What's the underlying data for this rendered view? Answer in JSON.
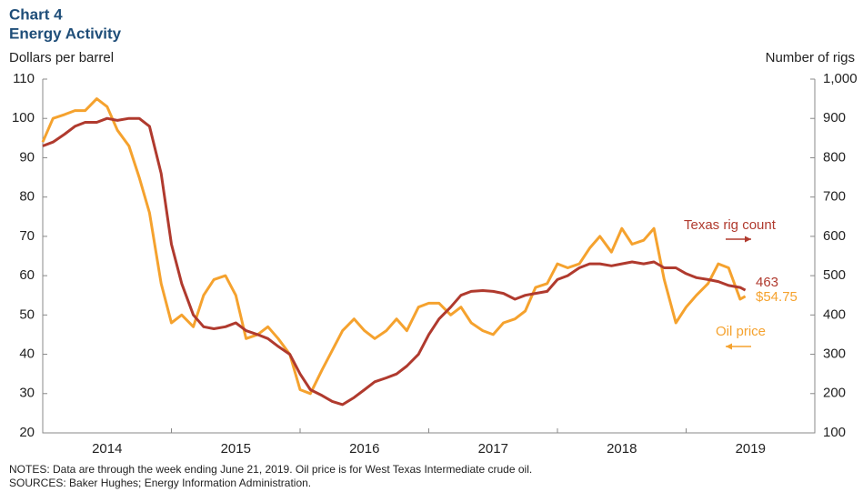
{
  "chart_data": {
    "type": "line",
    "title": "Chart 4",
    "subtitle": "Energy Activity",
    "y_label": "Dollars per barrel",
    "y2_label": "Number of rigs",
    "notes": "NOTES: Data are through the week ending June 21, 2019. Oil price is for West Texas Intermediate crude oil.",
    "sources": "SOURCES: Baker Hughes; Energy Information Administration.",
    "xlim": [
      2014,
      2020
    ],
    "xticks": [
      {
        "value": 2014.5,
        "label": "2014"
      },
      {
        "value": 2015.5,
        "label": "2015"
      },
      {
        "value": 2016.5,
        "label": "2016"
      },
      {
        "value": 2017.5,
        "label": "2017"
      },
      {
        "value": 2018.5,
        "label": "2018"
      },
      {
        "value": 2019.5,
        "label": "2019"
      }
    ],
    "ylim": [
      20,
      110
    ],
    "yticks": [
      20,
      30,
      40,
      50,
      60,
      70,
      80,
      90,
      100,
      110
    ],
    "y2lim": [
      100,
      1000
    ],
    "y2ticks": [
      100,
      200,
      300,
      400,
      500,
      600,
      700,
      800,
      900,
      {
        "value": 1000,
        "label": "1,000"
      }
    ],
    "x": [
      2014,
      2014.08,
      2014.17,
      2014.25,
      2014.33,
      2014.42,
      2014.5,
      2014.58,
      2014.67,
      2014.75,
      2014.83,
      2014.92,
      2015,
      2015.08,
      2015.17,
      2015.25,
      2015.33,
      2015.42,
      2015.5,
      2015.58,
      2015.67,
      2015.75,
      2015.83,
      2015.92,
      2016,
      2016.08,
      2016.17,
      2016.25,
      2016.33,
      2016.42,
      2016.5,
      2016.58,
      2016.67,
      2016.75,
      2016.83,
      2016.92,
      2017,
      2017.08,
      2017.17,
      2017.25,
      2017.33,
      2017.42,
      2017.5,
      2017.58,
      2017.67,
      2017.75,
      2017.83,
      2017.92,
      2018,
      2018.08,
      2018.17,
      2018.25,
      2018.33,
      2018.42,
      2018.5,
      2018.58,
      2018.67,
      2018.75,
      2018.83,
      2018.92,
      2019,
      2019.08,
      2019.17,
      2019.25,
      2019.33,
      2019.42,
      2019.46
    ],
    "series": [
      {
        "name": "Texas rig count",
        "color": "#b03a2e",
        "axis": "y2",
        "values": [
          830,
          840,
          860,
          880,
          890,
          890,
          900,
          895,
          900,
          900,
          880,
          760,
          580,
          480,
          400,
          370,
          365,
          370,
          380,
          360,
          350,
          340,
          320,
          300,
          250,
          210,
          195,
          180,
          172,
          190,
          210,
          230,
          240,
          250,
          270,
          300,
          350,
          390,
          420,
          450,
          460,
          462,
          460,
          455,
          440,
          450,
          455,
          460,
          490,
          500,
          520,
          530,
          530,
          525,
          530,
          535,
          530,
          535,
          520,
          520,
          505,
          495,
          490,
          485,
          475,
          470,
          463
        ]
      },
      {
        "name": "Oil price",
        "color": "#f5a22e",
        "values": [
          94,
          100,
          101,
          102,
          102,
          105,
          103,
          97,
          93,
          85,
          76,
          58,
          48,
          50,
          47,
          55,
          59,
          60,
          55,
          44,
          45,
          47,
          44,
          40,
          31,
          30,
          36,
          41,
          46,
          49,
          46,
          44,
          46,
          49,
          46,
          52,
          53,
          53,
          50,
          52,
          48,
          46,
          45,
          48,
          49,
          51,
          57,
          58,
          63,
          62,
          63,
          67,
          70,
          66,
          72,
          68,
          69,
          72,
          59,
          48,
          52,
          55,
          58,
          63,
          62,
          54,
          54.75
        ],
        "value_labels": [
          null,
          null,
          null,
          null,
          null,
          null,
          null,
          null,
          null,
          null,
          null,
          null,
          null,
          null,
          null,
          null,
          null,
          null,
          null,
          null,
          null,
          null,
          null,
          null,
          null,
          null,
          null,
          null,
          null,
          null,
          null,
          null,
          null,
          null,
          null,
          null,
          null,
          null,
          null,
          null,
          null,
          null,
          null,
          null,
          null,
          null,
          null,
          null,
          null,
          null,
          null,
          null,
          null,
          null,
          null,
          null,
          null,
          null,
          null,
          null,
          null,
          null,
          null,
          null,
          null,
          null,
          "$54.75"
        ]
      }
    ]
  }
}
